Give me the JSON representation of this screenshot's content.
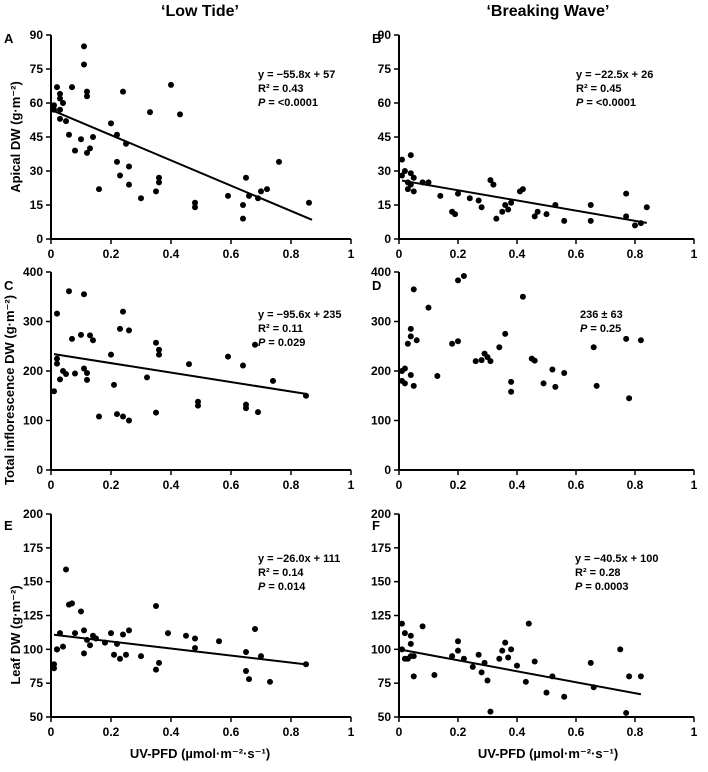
{
  "column_titles": [
    "‘Low Tide’",
    "‘Breaking Wave’"
  ],
  "y_axis_titles": [
    "Apical DW (g·m⁻²)",
    "Total inflorescence DW (g·m⁻²)",
    "Leaf DW (g·m⁻²)"
  ],
  "x_axis_title": "UV-PFD (µmol·m⁻²·s⁻¹)",
  "colors": {
    "axis": "#000000",
    "point": "#000000",
    "line": "#000000"
  },
  "chart_data": [
    {
      "panel": "A",
      "type": "scatter",
      "xlabel": "UV-PFD (µmol·m⁻²·s⁻¹)",
      "ylabel": "Apical DW (g·m⁻²)",
      "xlim": [
        0,
        1
      ],
      "ylim": [
        0,
        90
      ],
      "xticks": [
        0,
        0.2,
        0.4,
        0.6,
        0.8,
        1
      ],
      "xtick_labels": [
        "0",
        "0.2",
        "0.4",
        "0.6",
        "0.8",
        "1"
      ],
      "yticks": [
        0,
        15,
        30,
        45,
        60,
        75,
        90
      ],
      "ytick_labels": [
        "0",
        "15",
        "30",
        "45",
        "60",
        "75",
        "90"
      ],
      "annotation": {
        "line1": "y = −55.8x + 57",
        "line2": "R² = 0.43",
        "p_label": "P",
        "p_value": "= <0.0001"
      },
      "trend": {
        "slope": -55.8,
        "intercept": 57,
        "x_range": [
          0.01,
          0.87
        ]
      },
      "points": [
        [
          0.01,
          59
        ],
        [
          0.01,
          57
        ],
        [
          0.02,
          67
        ],
        [
          0.03,
          62
        ],
        [
          0.03,
          64
        ],
        [
          0.03,
          57
        ],
        [
          0.03,
          53
        ],
        [
          0.04,
          60
        ],
        [
          0.05,
          52
        ],
        [
          0.06,
          46
        ],
        [
          0.07,
          67
        ],
        [
          0.08,
          39
        ],
        [
          0.1,
          44
        ],
        [
          0.11,
          85
        ],
        [
          0.11,
          77
        ],
        [
          0.12,
          63
        ],
        [
          0.12,
          65
        ],
        [
          0.12,
          38
        ],
        [
          0.13,
          40
        ],
        [
          0.14,
          45
        ],
        [
          0.16,
          22
        ],
        [
          0.2,
          51
        ],
        [
          0.22,
          46
        ],
        [
          0.22,
          34
        ],
        [
          0.23,
          28
        ],
        [
          0.24,
          65
        ],
        [
          0.25,
          42
        ],
        [
          0.26,
          32
        ],
        [
          0.26,
          24
        ],
        [
          0.3,
          18
        ],
        [
          0.33,
          56
        ],
        [
          0.35,
          21
        ],
        [
          0.36,
          25
        ],
        [
          0.36,
          27
        ],
        [
          0.4,
          68
        ],
        [
          0.43,
          55
        ],
        [
          0.48,
          16
        ],
        [
          0.48,
          14
        ],
        [
          0.59,
          19
        ],
        [
          0.64,
          15
        ],
        [
          0.64,
          9
        ],
        [
          0.65,
          27
        ],
        [
          0.66,
          19
        ],
        [
          0.69,
          18
        ],
        [
          0.7,
          21
        ],
        [
          0.72,
          22
        ],
        [
          0.76,
          34
        ],
        [
          0.86,
          16
        ]
      ]
    },
    {
      "panel": "B",
      "type": "scatter",
      "xlabel": "UV-PFD (µmol·m⁻²·s⁻¹)",
      "ylabel": "Apical DW (g·m⁻²)",
      "xlim": [
        0,
        1
      ],
      "ylim": [
        0,
        90
      ],
      "xticks": [
        0,
        0.2,
        0.4,
        0.6,
        0.8,
        1
      ],
      "xtick_labels": [
        "0",
        "0.2",
        "0.4",
        "0.6",
        "0.8",
        "1"
      ],
      "yticks": [
        0,
        15,
        30,
        45,
        60,
        75,
        90
      ],
      "ytick_labels": [
        "0",
        "15",
        "30",
        "45",
        "60",
        "75",
        "90"
      ],
      "annotation": {
        "line1": "y = −22.5x + 26",
        "line2": "R² = 0.45",
        "p_label": "P",
        "p_value": "= <0.0001"
      },
      "trend": {
        "slope": -22.5,
        "intercept": 26,
        "x_range": [
          0.01,
          0.84
        ]
      },
      "points": [
        [
          0.01,
          35
        ],
        [
          0.01,
          28
        ],
        [
          0.02,
          30
        ],
        [
          0.03,
          25
        ],
        [
          0.03,
          22
        ],
        [
          0.04,
          37
        ],
        [
          0.04,
          29
        ],
        [
          0.04,
          24
        ],
        [
          0.05,
          27
        ],
        [
          0.05,
          21
        ],
        [
          0.08,
          25
        ],
        [
          0.1,
          25
        ],
        [
          0.14,
          19
        ],
        [
          0.18,
          12
        ],
        [
          0.19,
          11
        ],
        [
          0.2,
          20
        ],
        [
          0.24,
          18
        ],
        [
          0.27,
          17
        ],
        [
          0.28,
          14
        ],
        [
          0.31,
          26
        ],
        [
          0.32,
          24
        ],
        [
          0.33,
          9
        ],
        [
          0.35,
          12
        ],
        [
          0.36,
          15
        ],
        [
          0.37,
          13
        ],
        [
          0.38,
          16
        ],
        [
          0.41,
          21
        ],
        [
          0.42,
          22
        ],
        [
          0.46,
          10
        ],
        [
          0.47,
          12
        ],
        [
          0.5,
          11
        ],
        [
          0.53,
          15
        ],
        [
          0.56,
          8
        ],
        [
          0.65,
          15
        ],
        [
          0.65,
          8
        ],
        [
          0.77,
          20
        ],
        [
          0.77,
          10
        ],
        [
          0.8,
          6
        ],
        [
          0.82,
          7
        ],
        [
          0.84,
          14
        ]
      ]
    },
    {
      "panel": "C",
      "type": "scatter",
      "xlabel": "UV-PFD (µmol·m⁻²·s⁻¹)",
      "ylabel": "Total inflorescence DW (g·m⁻²)",
      "xlim": [
        0,
        1
      ],
      "ylim": [
        0,
        400
      ],
      "xticks": [
        0,
        0.2,
        0.4,
        0.6,
        0.8,
        1
      ],
      "xtick_labels": [
        "0",
        "0.2",
        "0.4",
        "0.6",
        "0.8",
        "1"
      ],
      "yticks": [
        0,
        100,
        200,
        300,
        400
      ],
      "ytick_labels": [
        "0",
        "100",
        "200",
        "300",
        "400"
      ],
      "annotation": {
        "line1": "y = −95.6x + 235",
        "line2": "R² = 0.11",
        "p_label": "P",
        "p_value": "= 0.029"
      },
      "trend": {
        "slope": -95.6,
        "intercept": 235,
        "x_range": [
          0.01,
          0.85
        ]
      },
      "points": [
        [
          0.01,
          159
        ],
        [
          0.02,
          215
        ],
        [
          0.02,
          316
        ],
        [
          0.02,
          225
        ],
        [
          0.03,
          183
        ],
        [
          0.04,
          200
        ],
        [
          0.05,
          194
        ],
        [
          0.06,
          361
        ],
        [
          0.07,
          265
        ],
        [
          0.08,
          195
        ],
        [
          0.1,
          273
        ],
        [
          0.11,
          355
        ],
        [
          0.11,
          205
        ],
        [
          0.12,
          182
        ],
        [
          0.12,
          196
        ],
        [
          0.13,
          272
        ],
        [
          0.14,
          262
        ],
        [
          0.16,
          108
        ],
        [
          0.2,
          233
        ],
        [
          0.21,
          172
        ],
        [
          0.22,
          113
        ],
        [
          0.23,
          285
        ],
        [
          0.24,
          320
        ],
        [
          0.24,
          108
        ],
        [
          0.26,
          100
        ],
        [
          0.26,
          282
        ],
        [
          0.32,
          187
        ],
        [
          0.35,
          116
        ],
        [
          0.35,
          257
        ],
        [
          0.36,
          243
        ],
        [
          0.36,
          233
        ],
        [
          0.46,
          214
        ],
        [
          0.49,
          138
        ],
        [
          0.49,
          130
        ],
        [
          0.59,
          229
        ],
        [
          0.64,
          211
        ],
        [
          0.65,
          125
        ],
        [
          0.65,
          132
        ],
        [
          0.68,
          253
        ],
        [
          0.69,
          117
        ],
        [
          0.74,
          180
        ],
        [
          0.85,
          150
        ]
      ]
    },
    {
      "panel": "D",
      "type": "scatter",
      "xlabel": "UV-PFD (µmol·m⁻²·s⁻¹)",
      "ylabel": "Total inflorescence DW (g·m⁻²)",
      "xlim": [
        0,
        1
      ],
      "ylim": [
        0,
        400
      ],
      "xticks": [
        0,
        0.2,
        0.4,
        0.6,
        0.8,
        1
      ],
      "xtick_labels": [
        "0",
        "0.2",
        "0.4",
        "0.6",
        "0.8",
        "1"
      ],
      "yticks": [
        0,
        100,
        200,
        300,
        400
      ],
      "ytick_labels": [
        "0",
        "100",
        "200",
        "300",
        "400"
      ],
      "annotation": {
        "line1": "236 ± 63",
        "line2": "",
        "p_label": "P",
        "p_value": "= 0.25"
      },
      "trend": null,
      "points": [
        [
          0.01,
          200
        ],
        [
          0.01,
          180
        ],
        [
          0.02,
          205
        ],
        [
          0.02,
          175
        ],
        [
          0.03,
          255
        ],
        [
          0.04,
          285
        ],
        [
          0.04,
          270
        ],
        [
          0.04,
          192
        ],
        [
          0.05,
          365
        ],
        [
          0.05,
          170
        ],
        [
          0.06,
          262
        ],
        [
          0.1,
          328
        ],
        [
          0.13,
          190
        ],
        [
          0.18,
          255
        ],
        [
          0.2,
          383
        ],
        [
          0.2,
          260
        ],
        [
          0.22,
          392
        ],
        [
          0.26,
          220
        ],
        [
          0.28,
          222
        ],
        [
          0.29,
          235
        ],
        [
          0.3,
          228
        ],
        [
          0.31,
          220
        ],
        [
          0.34,
          248
        ],
        [
          0.36,
          275
        ],
        [
          0.38,
          158
        ],
        [
          0.38,
          178
        ],
        [
          0.42,
          350
        ],
        [
          0.45,
          225
        ],
        [
          0.46,
          221
        ],
        [
          0.49,
          175
        ],
        [
          0.52,
          203
        ],
        [
          0.53,
          168
        ],
        [
          0.56,
          196
        ],
        [
          0.66,
          248
        ],
        [
          0.67,
          170
        ],
        [
          0.77,
          265
        ],
        [
          0.78,
          145
        ],
        [
          0.82,
          262
        ]
      ]
    },
    {
      "panel": "E",
      "type": "scatter",
      "xlabel": "UV-PFD (µmol·m⁻²·s⁻¹)",
      "ylabel": "Leaf DW (g·m⁻²)",
      "xlim": [
        0,
        1
      ],
      "ylim": [
        50,
        200
      ],
      "xticks": [
        0,
        0.2,
        0.4,
        0.6,
        0.8,
        1
      ],
      "xtick_labels": [
        "0",
        "0.2",
        "0.4",
        "0.6",
        "0.8",
        "1"
      ],
      "yticks": [
        50,
        75,
        100,
        125,
        150,
        175,
        200
      ],
      "ytick_labels": [
        "50",
        "75",
        "100",
        "125",
        "150",
        "175",
        "200"
      ],
      "annotation": {
        "line1": "y = −26.0x + 111",
        "line2": "R² = 0.14",
        "p_label": "P",
        "p_value": "= 0.014"
      },
      "trend": {
        "slope": -26.0,
        "intercept": 111,
        "x_range": [
          0.01,
          0.85
        ]
      },
      "points": [
        [
          0.01,
          89
        ],
        [
          0.01,
          86
        ],
        [
          0.02,
          100
        ],
        [
          0.02,
          100
        ],
        [
          0.03,
          112
        ],
        [
          0.04,
          102
        ],
        [
          0.05,
          159
        ],
        [
          0.06,
          133
        ],
        [
          0.07,
          134
        ],
        [
          0.08,
          112
        ],
        [
          0.1,
          128
        ],
        [
          0.11,
          114
        ],
        [
          0.11,
          97
        ],
        [
          0.12,
          107
        ],
        [
          0.13,
          103
        ],
        [
          0.14,
          110
        ],
        [
          0.15,
          108
        ],
        [
          0.18,
          105
        ],
        [
          0.2,
          112
        ],
        [
          0.21,
          96
        ],
        [
          0.22,
          104
        ],
        [
          0.23,
          93
        ],
        [
          0.24,
          111
        ],
        [
          0.25,
          96
        ],
        [
          0.26,
          114
        ],
        [
          0.3,
          95
        ],
        [
          0.35,
          132
        ],
        [
          0.35,
          85
        ],
        [
          0.36,
          90
        ],
        [
          0.39,
          112
        ],
        [
          0.45,
          110
        ],
        [
          0.48,
          108
        ],
        [
          0.48,
          101
        ],
        [
          0.56,
          106
        ],
        [
          0.65,
          98
        ],
        [
          0.65,
          84
        ],
        [
          0.66,
          78
        ],
        [
          0.68,
          115
        ],
        [
          0.7,
          95
        ],
        [
          0.73,
          76
        ],
        [
          0.85,
          89
        ]
      ]
    },
    {
      "panel": "F",
      "type": "scatter",
      "xlabel": "UV-PFD (µmol·m⁻²·s⁻¹)",
      "ylabel": "Leaf DW (g·m⁻²)",
      "xlim": [
        0,
        1
      ],
      "ylim": [
        50,
        200
      ],
      "xticks": [
        0,
        0.2,
        0.4,
        0.6,
        0.8,
        1
      ],
      "xtick_labels": [
        "0",
        "0.2",
        "0.4",
        "0.6",
        "0.8",
        "1"
      ],
      "yticks": [
        50,
        75,
        100,
        125,
        150,
        175,
        200
      ],
      "ytick_labels": [
        "50",
        "75",
        "100",
        "125",
        "150",
        "175",
        "200"
      ],
      "annotation": {
        "line1": "y = −40.5x + 100",
        "line2": "R² = 0.28",
        "p_label": "P",
        "p_value": "= 0.0003"
      },
      "trend": {
        "slope": -40.5,
        "intercept": 100,
        "x_range": [
          0.01,
          0.82
        ]
      },
      "points": [
        [
          0.01,
          119
        ],
        [
          0.01,
          100
        ],
        [
          0.02,
          112
        ],
        [
          0.02,
          93
        ],
        [
          0.03,
          93
        ],
        [
          0.04,
          110
        ],
        [
          0.04,
          104
        ],
        [
          0.04,
          95
        ],
        [
          0.05,
          95
        ],
        [
          0.05,
          80
        ],
        [
          0.08,
          117
        ],
        [
          0.12,
          81
        ],
        [
          0.18,
          95
        ],
        [
          0.2,
          106
        ],
        [
          0.2,
          99
        ],
        [
          0.22,
          93
        ],
        [
          0.25,
          87
        ],
        [
          0.27,
          96
        ],
        [
          0.28,
          83
        ],
        [
          0.29,
          90
        ],
        [
          0.3,
          77
        ],
        [
          0.31,
          54
        ],
        [
          0.34,
          93
        ],
        [
          0.35,
          99
        ],
        [
          0.36,
          105
        ],
        [
          0.37,
          94
        ],
        [
          0.38,
          100
        ],
        [
          0.4,
          88
        ],
        [
          0.43,
          76
        ],
        [
          0.44,
          119
        ],
        [
          0.46,
          91
        ],
        [
          0.5,
          68
        ],
        [
          0.52,
          80
        ],
        [
          0.56,
          65
        ],
        [
          0.65,
          90
        ],
        [
          0.66,
          72
        ],
        [
          0.75,
          100
        ],
        [
          0.77,
          53
        ],
        [
          0.78,
          80
        ],
        [
          0.82,
          80
        ]
      ]
    }
  ]
}
